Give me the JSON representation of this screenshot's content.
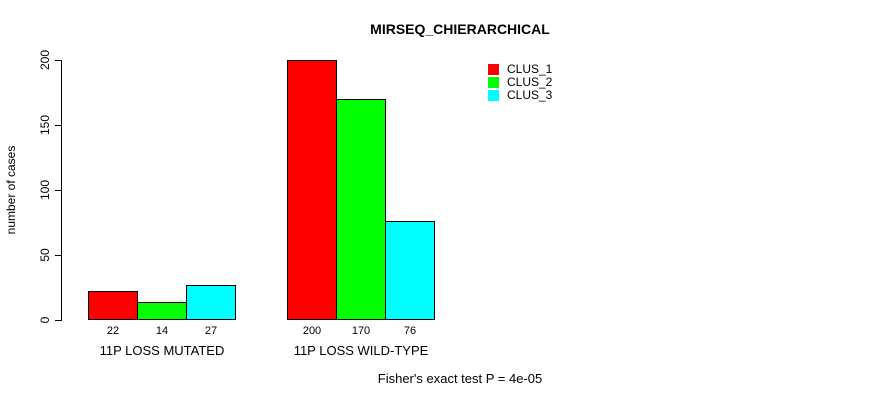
{
  "chart_data": {
    "type": "bar",
    "title": "MIRSEQ_CHIERARCHICAL",
    "xlabel": "",
    "ylabel": "number of cases",
    "categories": [
      "11P LOSS MUTATED",
      "11P LOSS WILD-TYPE"
    ],
    "series": [
      {
        "name": "CLUS_1",
        "color": "#ff0000",
        "values": [
          22,
          200
        ]
      },
      {
        "name": "CLUS_2",
        "color": "#00ff00",
        "values": [
          14,
          170
        ]
      },
      {
        "name": "CLUS_3",
        "color": "#00ffff",
        "values": [
          27,
          76
        ]
      }
    ],
    "bar_value_labels": [
      [
        "22",
        "14",
        "27"
      ],
      [
        "200",
        "170",
        "76"
      ]
    ],
    "yticks": [
      0,
      50,
      100,
      150,
      200
    ],
    "ylim": [
      0,
      200
    ],
    "grid": false,
    "legend_position": "top-right",
    "annotation": "Fisher's exact test P = 4e-05"
  }
}
